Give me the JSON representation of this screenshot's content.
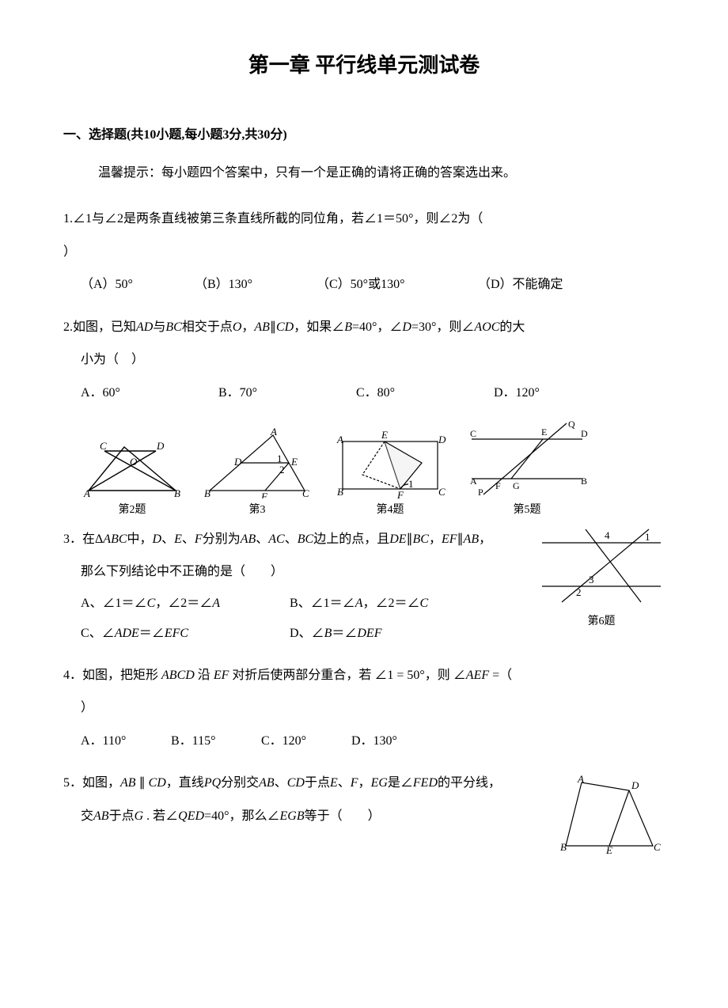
{
  "title": "第一章 平行线单元测试卷",
  "section1": {
    "heading": "一、选择题(共10小题,每小题3分,共30分)",
    "hint": "温馨提示：每小题四个答案中，只有一个是正确的请将正确的答案选出来。"
  },
  "q1": {
    "text_a": "1.∠1与∠2是两条直线被第三条直线所截的同位角，若∠1＝50°，则∠2为（",
    "text_b": "）",
    "A": "（A）50°",
    "B": "（B）130°",
    "C": "（C）50°或130°",
    "D": "（D）不能确定",
    "Aw": 140,
    "Bw": 150,
    "Cw": 200,
    "Dw": 140
  },
  "q2": {
    "line1_a": "2.如图，已知",
    "line1_b": "与",
    "line1_c": "相交于点",
    "line1_d": "，",
    "line1_e": "∥",
    "line1_f": "，如果∠",
    "line1_g": "=40°，∠",
    "line1_h": "=30°，则∠",
    "line1_i": "的大",
    "line2": "小为（　）",
    "AD": "AD",
    "BC": "BC",
    "O": "O",
    "AB": "AB",
    "CD": "CD",
    "B": "B",
    "D": "D",
    "AOC": "AOC",
    "optA": "A．60°",
    "optB": "B．70°",
    "optC": "C．80°",
    "optD": "D．120°",
    "Aw": 170,
    "Bw": 170,
    "Cw": 170,
    "Dw": 100
  },
  "figs": {
    "cap2": "第2题",
    "cap3": "第3",
    "cap4": "第4题",
    "cap5": "第5题",
    "cap6": "第6题"
  },
  "q3": {
    "l1a": "3．在Δ",
    "ABC": "ABC",
    "l1b": "中，",
    "D": "D",
    "E": "E",
    "F": "F",
    "l1c": "、",
    "l1d": "、",
    "l1e": "分别为",
    "AB": "AB",
    "AC": "AC",
    "BCe": "BC",
    "l1f": "边上的点，且",
    "DE": "DE",
    "par": "∥",
    "BC": "BC",
    "comma": "，",
    "EF": "EF",
    "AB2": "AB",
    "l1g": "，",
    "l2": "那么下列结论中不正确的是（　　）",
    "optA_a": "A、∠1＝∠",
    "C": "C",
    "optA_b": "，∠2＝∠",
    "A": "A",
    "optB_a": "B、∠1＝∠",
    "optB_b": "，∠2＝∠",
    "optC_a": "C、∠",
    "ADE": "ADE",
    "eq": "＝∠",
    "EFC": "EFC",
    "optD_a": "D、∠",
    "Bl": "B",
    "DEF": "DEF"
  },
  "q4": {
    "l1a": "4．如图，把矩形 ",
    "ABCD": "ABCD",
    "l1b": " 沿 ",
    "EF": "EF",
    "l1c": " 对折后使两部分重合，若 ∠1 = 50°，则 ∠",
    "AEF": "AEF",
    "l1d": " =（",
    "l2": "）",
    "optA": "A．110°",
    "optB": "B．115°",
    "optC": "C．120°",
    "optD": "D．130°",
    "Aw": 110,
    "Bw": 110,
    "Cw": 110,
    "Dw": 110
  },
  "q5": {
    "l1a": "5．如图，",
    "AB": "AB",
    "par": " ∥ ",
    "CD": "CD",
    "l1b": "，直线",
    "PQ": "PQ",
    "l1c": "分别交",
    "l1d": "、",
    "l1e": "于点",
    "E": "E",
    "F": "F",
    "l1f": "，",
    "EG": "EG",
    "l1g": "是∠",
    "FED": "FED",
    "l1h": "的平分线，",
    "l2a": "交",
    "l2b": "于点",
    "G": "G",
    "l2c": " . 若∠",
    "QED": "QED",
    "l2d": "=40°，那么∠",
    "EGB": "EGB",
    "l2e": "等于（　　）"
  },
  "svg": {
    "stroke": "#000000",
    "fill": "none",
    "sw": 1.2,
    "font": "italic 13px 'Times New Roman', serif",
    "fontup": "13px 'Times New Roman', serif"
  }
}
